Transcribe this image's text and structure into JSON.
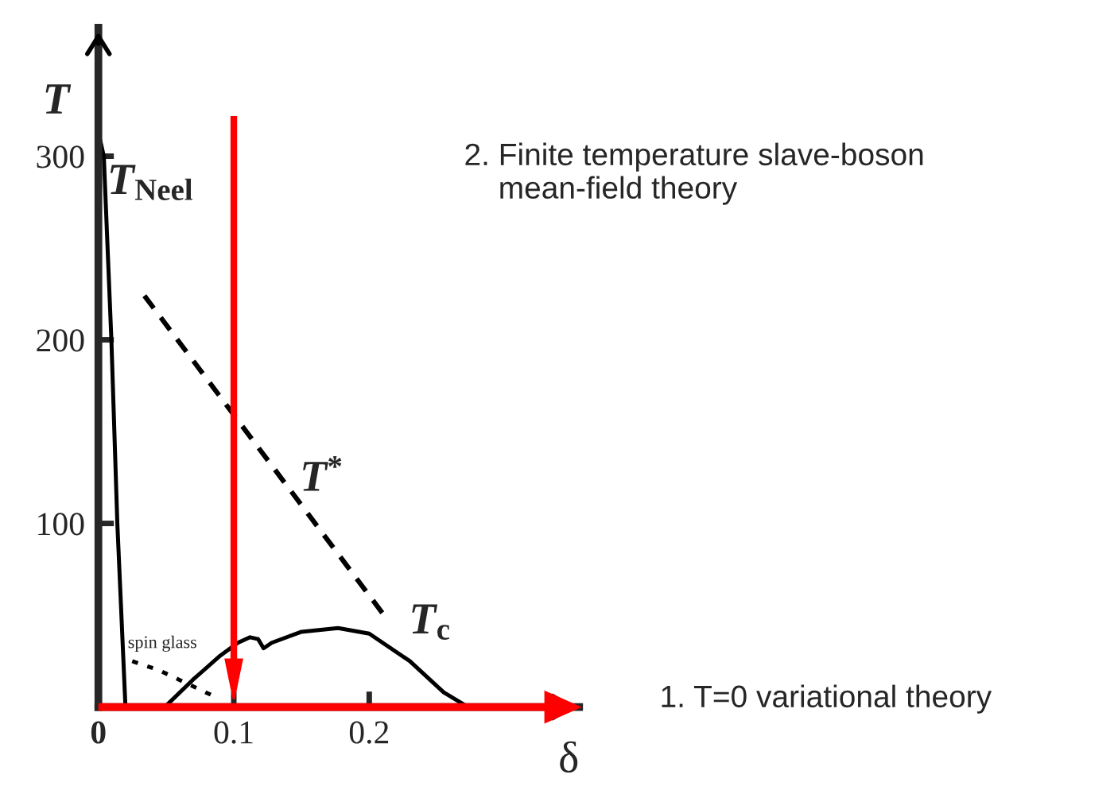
{
  "chart_data": {
    "type": "line",
    "xlabel": "δ",
    "ylabel": "T",
    "xlim": [
      0,
      0.355
    ],
    "ylim": [
      0,
      370
    ],
    "xticks": [
      {
        "value": 0,
        "label": "0"
      },
      0.1,
      0.2
    ],
    "yticks": [
      100,
      200,
      300
    ],
    "grid": false,
    "legend": false,
    "series": [
      {
        "name": "T$_{Neel}$",
        "color": "#000000",
        "line_style": "solid",
        "x": [
          0,
          0.004,
          0.0096,
          0.014,
          0.02
        ],
        "values": [
          313,
          300,
          200,
          100,
          0
        ]
      },
      {
        "name": "T$^{*}$",
        "color": "#000000",
        "line_style": "dashed",
        "x": [
          0.034,
          0.213
        ],
        "values": [
          224,
          48
        ]
      },
      {
        "name": "T$_{c}$",
        "color": "#000000",
        "line_style": "solid",
        "x": [
          0.049,
          0.07,
          0.09,
          0.103,
          0.112,
          0.118,
          0.122,
          0.128,
          0.15,
          0.177,
          0.2,
          0.23,
          0.255,
          0.273
        ],
        "values": [
          0,
          15,
          28,
          35,
          38,
          37,
          32,
          35,
          41,
          43,
          40,
          25,
          8,
          0
        ]
      },
      {
        "name": "spin glass",
        "color": "#000000",
        "line_style": "dotted",
        "x": [
          0.025,
          0.045,
          0.065,
          0.085
        ],
        "values": [
          25,
          20,
          13,
          6
        ]
      }
    ],
    "ref_lines": [
      {
        "axis": "x",
        "value": 0.1,
        "color": "#ff0000"
      },
      {
        "axis": "y",
        "value": 0,
        "color": "#ff0000"
      }
    ],
    "annotations": [
      "2. Finite temperature slave-boson\n    mean-field theory",
      "1. T=0 variational theory"
    ]
  }
}
